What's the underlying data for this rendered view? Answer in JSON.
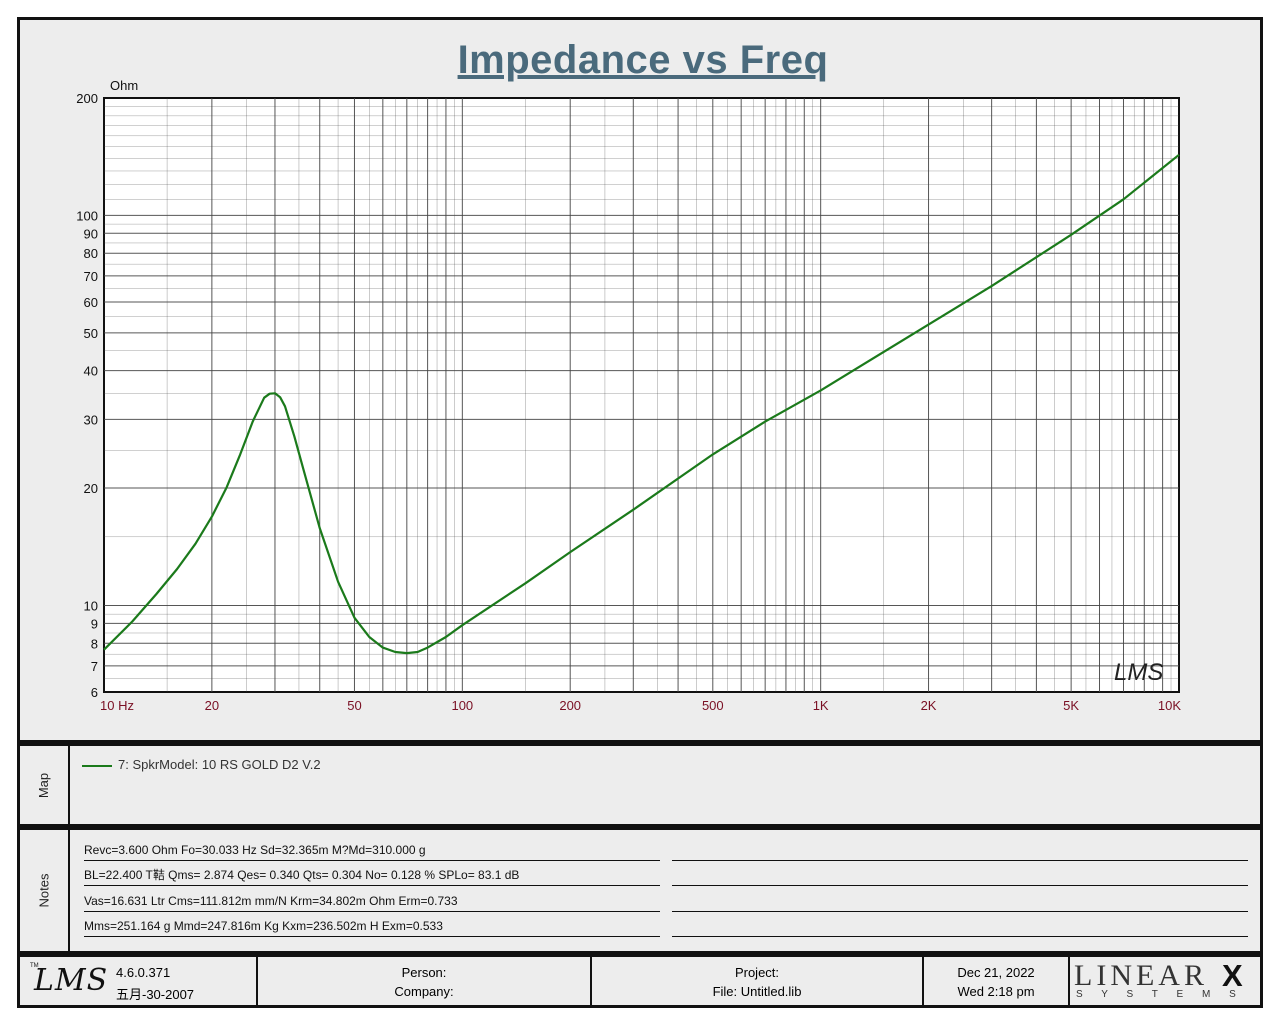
{
  "chart_data": {
    "type": "line",
    "title": "Impedance vs Freq",
    "ylabel": "Ohm",
    "xlabel": "",
    "x_scale": "log",
    "y_scale": "log",
    "xlim": [
      10,
      10000
    ],
    "ylim": [
      6,
      200
    ],
    "x_ticks": [
      {
        "value": 10,
        "label": "10  Hz"
      },
      {
        "value": 20,
        "label": "20"
      },
      {
        "value": 50,
        "label": "50"
      },
      {
        "value": 100,
        "label": "100"
      },
      {
        "value": 200,
        "label": "200"
      },
      {
        "value": 500,
        "label": "500"
      },
      {
        "value": 1000,
        "label": "1K"
      },
      {
        "value": 2000,
        "label": "2K"
      },
      {
        "value": 5000,
        "label": "5K"
      },
      {
        "value": 10000,
        "label": "10K"
      }
    ],
    "y_ticks": [
      {
        "value": 6,
        "label": "6"
      },
      {
        "value": 7,
        "label": "7"
      },
      {
        "value": 8,
        "label": "8"
      },
      {
        "value": 9,
        "label": "9"
      },
      {
        "value": 10,
        "label": "10"
      },
      {
        "value": 20,
        "label": "20"
      },
      {
        "value": 30,
        "label": "30"
      },
      {
        "value": 40,
        "label": "40"
      },
      {
        "value": 50,
        "label": "50"
      },
      {
        "value": 60,
        "label": "60"
      },
      {
        "value": 70,
        "label": "70"
      },
      {
        "value": 80,
        "label": "80"
      },
      {
        "value": 90,
        "label": "90"
      },
      {
        "value": 100,
        "label": "100"
      },
      {
        "value": 200,
        "label": "200"
      }
    ],
    "grid": true,
    "series": [
      {
        "name": "7: SpkrModel: 10  RS GOLD  D2 V.2",
        "color": "#1b7a1b",
        "x": [
          10,
          12,
          14,
          16,
          18,
          20,
          22,
          24,
          26,
          28,
          29,
          30,
          31,
          32,
          34,
          36,
          40,
          45,
          50,
          55,
          60,
          65,
          70,
          75,
          80,
          90,
          100,
          150,
          200,
          300,
          500,
          700,
          1000,
          2000,
          3000,
          5000,
          7000,
          10000
        ],
        "y": [
          7.7,
          9.1,
          10.7,
          12.4,
          14.4,
          16.9,
          20.1,
          24.4,
          29.6,
          34.1,
          34.9,
          35.0,
          34.2,
          32.4,
          27.1,
          22.4,
          15.8,
          11.5,
          9.3,
          8.3,
          7.8,
          7.6,
          7.55,
          7.6,
          7.8,
          8.3,
          8.9,
          11.4,
          13.7,
          17.6,
          24.4,
          29.6,
          35.6,
          52.5,
          65.9,
          89.2,
          110,
          143
        ]
      }
    ]
  },
  "map": {
    "side_label": "Map",
    "legend_text": "7: SpkrModel: 10  RS GOLD  D2 V.2"
  },
  "notes": {
    "side_label": "Notes",
    "lines": [
      "Revc=3.600 Ohm  Fo=30.033 Hz  Sd=32.365m M?Md=310.000 g",
      "BL=22.400 T鞊  Qms= 2.874  Qes= 0.340  Qts= 0.304  No= 0.128 %  SPLo= 83.1 dB",
      "Vas=16.631 Ltr  Cms=111.812m mm/N  Krm=34.802m Ohm  Erm=0.733",
      "Mms=251.164 g  Mmd=247.816m Kg  Kxm=236.502m H  Exm=0.533"
    ]
  },
  "footer": {
    "logo": "LMS",
    "logo_tm": "TM",
    "version": "4.6.0.371",
    "build_date": "五月-30-2007",
    "person_label": "Person:",
    "company_label": "Company:",
    "project_label": "Project:",
    "file_label": "File: Untitled.lib",
    "date": "Dec 21, 2022",
    "time": "Wed  2:18 pm",
    "brand_main": "LINEAR",
    "brand_x": "X",
    "brand_sub": "S Y S T E M S"
  },
  "chart_watermark": "LMS",
  "colors": {
    "grid": "#444444",
    "tick_labels_x": "#7a1024",
    "tick_labels_y": "#111111",
    "title": "#4a6a7c",
    "panel_bg": "#ededed"
  }
}
